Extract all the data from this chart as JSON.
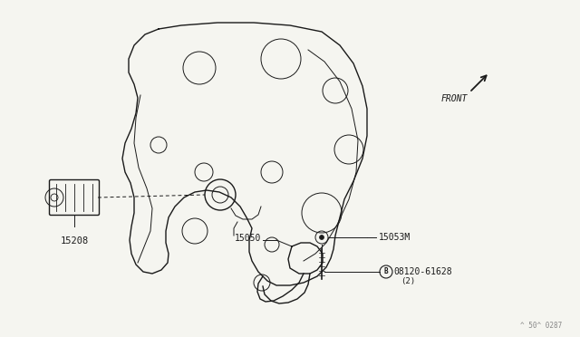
{
  "bg_color": "#f5f5f0",
  "line_color": "#1a1a1a",
  "label_color": "#1a1a1a",
  "labels": {
    "part1": "15208",
    "part2": "15050",
    "part3": "15053M",
    "part4": "08120-61628",
    "part4b": "(2)",
    "front": "FRONT",
    "watermark": "^ 50^ 0287"
  },
  "figsize": [
    6.4,
    3.72
  ],
  "dpi": 100
}
